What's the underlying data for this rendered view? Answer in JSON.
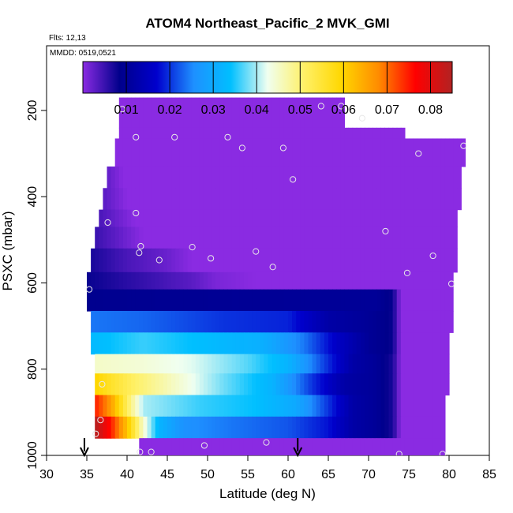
{
  "chart_data": {
    "type": "heatmap",
    "title": "ATOM4 Northeast_Pacific_2 MVK_GMI",
    "annotations": [
      "Flts: 12,13",
      "MMDD: 0519,0521"
    ],
    "xlabel": "Latitude (deg N)",
    "ylabel": "PSXC (mbar)",
    "xlim": [
      30,
      85
    ],
    "ylim": [
      1000,
      50
    ],
    "y_reversed": true,
    "x_ticks": [
      30,
      35,
      40,
      45,
      50,
      55,
      60,
      65,
      70,
      75,
      80,
      85
    ],
    "y_ticks": [
      200,
      400,
      600,
      800,
      1000
    ],
    "colorbar": {
      "range": [
        0.0,
        0.085
      ],
      "tick_values": [
        0.01,
        0.02,
        0.03,
        0.04,
        0.05,
        0.06,
        0.07,
        0.08
      ],
      "tick_labels": [
        "0.01",
        "0.02",
        "0.03",
        "0.04",
        "0.05",
        "0.06",
        "0.07",
        "0.08"
      ],
      "colors": [
        "#8a2be2",
        "#00008b",
        "#0000cd",
        "#1e90ff",
        "#00bfff",
        "#f0fff0",
        "#fff066",
        "#ffd700",
        "#ff8c00",
        "#ff0000",
        "#b22222"
      ]
    },
    "rows": [
      {
        "p_top": 170,
        "p_bot": 240,
        "lat_start": 39.0,
        "lat_end": 67.0,
        "stops": [
          [
            39,
            0.0
          ],
          [
            67,
            0.0
          ]
        ]
      },
      {
        "p_top": 240,
        "p_bot": 265,
        "lat_start": 39.0,
        "lat_end": 74.5,
        "stops": [
          [
            39,
            0.0
          ],
          [
            74.5,
            0.0
          ]
        ]
      },
      {
        "p_top": 265,
        "p_bot": 330,
        "lat_start": 38.5,
        "lat_end": 82.0,
        "stops": [
          [
            38.5,
            0.0
          ],
          [
            82,
            0.0
          ]
        ]
      },
      {
        "p_top": 330,
        "p_bot": 380,
        "lat_start": 37.5,
        "lat_end": 81.5,
        "stops": [
          [
            37.5,
            0.0025
          ],
          [
            39.5,
            0.0
          ],
          [
            81.5,
            0.0
          ]
        ]
      },
      {
        "p_top": 380,
        "p_bot": 430,
        "lat_start": 37.0,
        "lat_end": 81.5,
        "stops": [
          [
            37,
            0.003
          ],
          [
            40,
            0.0
          ],
          [
            81.5,
            0.0
          ]
        ]
      },
      {
        "p_top": 430,
        "p_bot": 470,
        "lat_start": 36.5,
        "lat_end": 81.0,
        "stops": [
          [
            36.5,
            0.004
          ],
          [
            41,
            0.0
          ],
          [
            81,
            0.0
          ]
        ]
      },
      {
        "p_top": 470,
        "p_bot": 520,
        "lat_start": 36.0,
        "lat_end": 81.0,
        "stops": [
          [
            36,
            0.005
          ],
          [
            42,
            0.0
          ],
          [
            81,
            0.0
          ]
        ]
      },
      {
        "p_top": 520,
        "p_bot": 575,
        "lat_start": 35.5,
        "lat_end": 81.0,
        "stops": [
          [
            35.5,
            0.007
          ],
          [
            40,
            0.004
          ],
          [
            45,
            0.002
          ],
          [
            48,
            0.0
          ],
          [
            81,
            0.0
          ]
        ]
      },
      {
        "p_top": 575,
        "p_bot": 615,
        "lat_start": 35.0,
        "lat_end": 80.5,
        "stops": [
          [
            35,
            0.008
          ],
          [
            40,
            0.006
          ],
          [
            48,
            0.003
          ],
          [
            51,
            0.001
          ],
          [
            56,
            0.0
          ],
          [
            80.5,
            0.0
          ]
        ]
      },
      {
        "p_top": 615,
        "p_bot": 665,
        "lat_start": 35.0,
        "lat_end": 80.5,
        "stops": [
          [
            35,
            0.009
          ],
          [
            60,
            0.01
          ],
          [
            71,
            0.01
          ],
          [
            73,
            0.008
          ],
          [
            74,
            0.0
          ],
          [
            80.5,
            0.0
          ]
        ]
      },
      {
        "p_top": 665,
        "p_bot": 715,
        "lat_start": 35.5,
        "lat_end": 80.5,
        "stops": [
          [
            35.5,
            0.024
          ],
          [
            42,
            0.023
          ],
          [
            52,
            0.02
          ],
          [
            60,
            0.019
          ],
          [
            65,
            0.012
          ],
          [
            70,
            0.01
          ],
          [
            73,
            0.008
          ],
          [
            74,
            0.0
          ],
          [
            80.5,
            0.0
          ]
        ]
      },
      {
        "p_top": 715,
        "p_bot": 765,
        "lat_start": 35.5,
        "lat_end": 80.0,
        "stops": [
          [
            35.5,
            0.033
          ],
          [
            42,
            0.036
          ],
          [
            48,
            0.034
          ],
          [
            57,
            0.031
          ],
          [
            62,
            0.024
          ],
          [
            66,
            0.016
          ],
          [
            70,
            0.01
          ],
          [
            73,
            0.008
          ],
          [
            74,
            0.0
          ],
          [
            80,
            0.0
          ]
        ]
      },
      {
        "p_top": 765,
        "p_bot": 810,
        "lat_start": 36.0,
        "lat_end": 80.0,
        "stops": [
          [
            36,
            0.045
          ],
          [
            42,
            0.044
          ],
          [
            48,
            0.042
          ],
          [
            55,
            0.037
          ],
          [
            60,
            0.032
          ],
          [
            64,
            0.022
          ],
          [
            68,
            0.012
          ],
          [
            71,
            0.01
          ],
          [
            73,
            0.007
          ],
          [
            74,
            0.0
          ],
          [
            80,
            0.0
          ]
        ]
      },
      {
        "p_top": 810,
        "p_bot": 860,
        "lat_start": 36.0,
        "lat_end": 80.0,
        "stops": [
          [
            36,
            0.06
          ],
          [
            38,
            0.056
          ],
          [
            41,
            0.051
          ],
          [
            46,
            0.045
          ],
          [
            52,
            0.038
          ],
          [
            58,
            0.032
          ],
          [
            63,
            0.02
          ],
          [
            67,
            0.012
          ],
          [
            71,
            0.01
          ],
          [
            73,
            0.007
          ],
          [
            74,
            0.0
          ],
          [
            80,
            0.0
          ]
        ]
      },
      {
        "p_top": 860,
        "p_bot": 910,
        "lat_start": 36.0,
        "lat_end": 79.5,
        "stops": [
          [
            36,
            0.075
          ],
          [
            38,
            0.066
          ],
          [
            40,
            0.052
          ],
          [
            42,
            0.04
          ],
          [
            49,
            0.036
          ],
          [
            56,
            0.034
          ],
          [
            61,
            0.03
          ],
          [
            65,
            0.02
          ],
          [
            68,
            0.012
          ],
          [
            71,
            0.01
          ],
          [
            73,
            0.007
          ],
          [
            74,
            0.0
          ],
          [
            79.5,
            0.0
          ]
        ]
      },
      {
        "p_top": 910,
        "p_bot": 960,
        "lat_start": 36.0,
        "lat_end": 79.5,
        "stops": [
          [
            36,
            0.085
          ],
          [
            38,
            0.075
          ],
          [
            40,
            0.062
          ],
          [
            42,
            0.045
          ],
          [
            44,
            0.032
          ],
          [
            47,
            0.026
          ],
          [
            53,
            0.024
          ],
          [
            60,
            0.022
          ],
          [
            65,
            0.018
          ],
          [
            68,
            0.012
          ],
          [
            71,
            0.01
          ],
          [
            73,
            0.007
          ],
          [
            74,
            0.0
          ],
          [
            79.5,
            0.0
          ]
        ]
      },
      {
        "p_top": 960,
        "p_bot": 1000,
        "lat_start": 41.5,
        "lat_end": 79.5,
        "stops": [
          [
            41.5,
            0.0
          ],
          [
            79.5,
            0.0
          ]
        ]
      }
    ],
    "points": [
      {
        "lat": 39.4,
        "p": 197
      },
      {
        "lat": 64.1,
        "p": 190
      },
      {
        "lat": 66.6,
        "p": 190
      },
      {
        "lat": 69.2,
        "p": 218
      },
      {
        "lat": 41.1,
        "p": 262
      },
      {
        "lat": 45.9,
        "p": 262
      },
      {
        "lat": 52.5,
        "p": 262
      },
      {
        "lat": 54.3,
        "p": 287
      },
      {
        "lat": 59.4,
        "p": 287
      },
      {
        "lat": 76.2,
        "p": 300
      },
      {
        "lat": 81.8,
        "p": 282
      },
      {
        "lat": 60.6,
        "p": 360
      },
      {
        "lat": 41.1,
        "p": 438
      },
      {
        "lat": 37.6,
        "p": 460
      },
      {
        "lat": 41.7,
        "p": 515
      },
      {
        "lat": 41.5,
        "p": 530
      },
      {
        "lat": 44.0,
        "p": 547
      },
      {
        "lat": 48.1,
        "p": 517
      },
      {
        "lat": 50.4,
        "p": 543
      },
      {
        "lat": 56.0,
        "p": 527
      },
      {
        "lat": 58.1,
        "p": 563
      },
      {
        "lat": 72.1,
        "p": 480
      },
      {
        "lat": 78.0,
        "p": 537
      },
      {
        "lat": 74.8,
        "p": 577
      },
      {
        "lat": 80.3,
        "p": 602
      },
      {
        "lat": 35.3,
        "p": 615
      },
      {
        "lat": 36.7,
        "p": 918
      },
      {
        "lat": 36.1,
        "p": 950
      },
      {
        "lat": 36.9,
        "p": 835
      },
      {
        "lat": 41.6,
        "p": 992
      },
      {
        "lat": 43.0,
        "p": 992
      },
      {
        "lat": 49.6,
        "p": 977
      },
      {
        "lat": 57.3,
        "p": 970
      },
      {
        "lat": 73.8,
        "p": 997
      },
      {
        "lat": 79.2,
        "p": 997
      }
    ],
    "arrows": [
      {
        "lat": 34.7
      },
      {
        "lat": 61.2
      }
    ]
  }
}
